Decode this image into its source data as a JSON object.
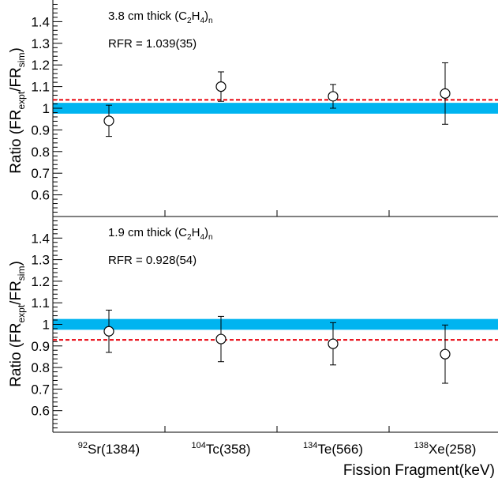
{
  "colors": {
    "band": "#00b4f0",
    "rfr_line": "#e8000b",
    "frame": "#000000"
  },
  "xlabel": "Fission Fragment(keV)",
  "categories": [
    {
      "sup": "92",
      "name": "Sr(1384)"
    },
    {
      "sup": "104",
      "name": "Tc(358)"
    },
    {
      "sup": "134",
      "name": "Te(566)"
    },
    {
      "sup": "138",
      "name": "Xe(258)"
    }
  ],
  "chart_data": [
    {
      "type": "scatter",
      "panel": "top",
      "ylabel": {
        "main": "Ratio (FR",
        "sub1": "expt",
        "mid": "/FR",
        "sub2": "sim",
        "end": ")"
      },
      "ylim": [
        0.5,
        1.5
      ],
      "yticks": [
        0.6,
        0.7,
        0.8,
        0.9,
        1,
        1.1,
        1.2,
        1.3,
        1.4
      ],
      "yticklabels": [
        "0.6",
        "0.7",
        "0.8",
        "0.9",
        "1",
        "1.1",
        "1.2",
        "1.3",
        "1.4"
      ],
      "annotation_material": {
        "pre": "3.8 cm thick (C",
        "s1": "2",
        "mid": "H",
        "s2": "4",
        "post": ")",
        "s3": "n"
      },
      "annotation_rfr": "RFR = 1.039(35)",
      "rfr": 1.039,
      "band": [
        0.975,
        1.025
      ],
      "points": [
        {
          "x": "92Sr(1384)",
          "y": 0.942,
          "err": 0.072
        },
        {
          "x": "104Tc(358)",
          "y": 1.1,
          "err": 0.068
        },
        {
          "x": "134Te(566)",
          "y": 1.055,
          "err": 0.055
        },
        {
          "x": "138Xe(258)",
          "y": 1.068,
          "err": 0.142
        }
      ]
    },
    {
      "type": "scatter",
      "panel": "bottom",
      "ylabel": {
        "main": "Ratio (FR",
        "sub1": "expt",
        "mid": "/FR",
        "sub2": "sim",
        "end": ")"
      },
      "ylim": [
        0.5,
        1.5
      ],
      "yticks": [
        0.6,
        0.7,
        0.8,
        0.9,
        1,
        1.1,
        1.2,
        1.3,
        1.4
      ],
      "yticklabels": [
        "0.6",
        "0.7",
        "0.8",
        "0.9",
        "1",
        "1.1",
        "1.2",
        "1.3",
        "1.4"
      ],
      "annotation_material": {
        "pre": "1.9 cm thick (C",
        "s1": "2",
        "mid": "H",
        "s2": "4",
        "post": ")",
        "s3": "n"
      },
      "annotation_rfr": "RFR = 0.928(54)",
      "rfr": 0.928,
      "band": [
        0.975,
        1.025
      ],
      "points": [
        {
          "x": "92Sr(1384)",
          "y": 0.968,
          "err": 0.098
        },
        {
          "x": "104Tc(358)",
          "y": 0.932,
          "err": 0.105
        },
        {
          "x": "134Te(566)",
          "y": 0.91,
          "err": 0.098
        },
        {
          "x": "138Xe(258)",
          "y": 0.862,
          "err": 0.135
        }
      ]
    }
  ]
}
